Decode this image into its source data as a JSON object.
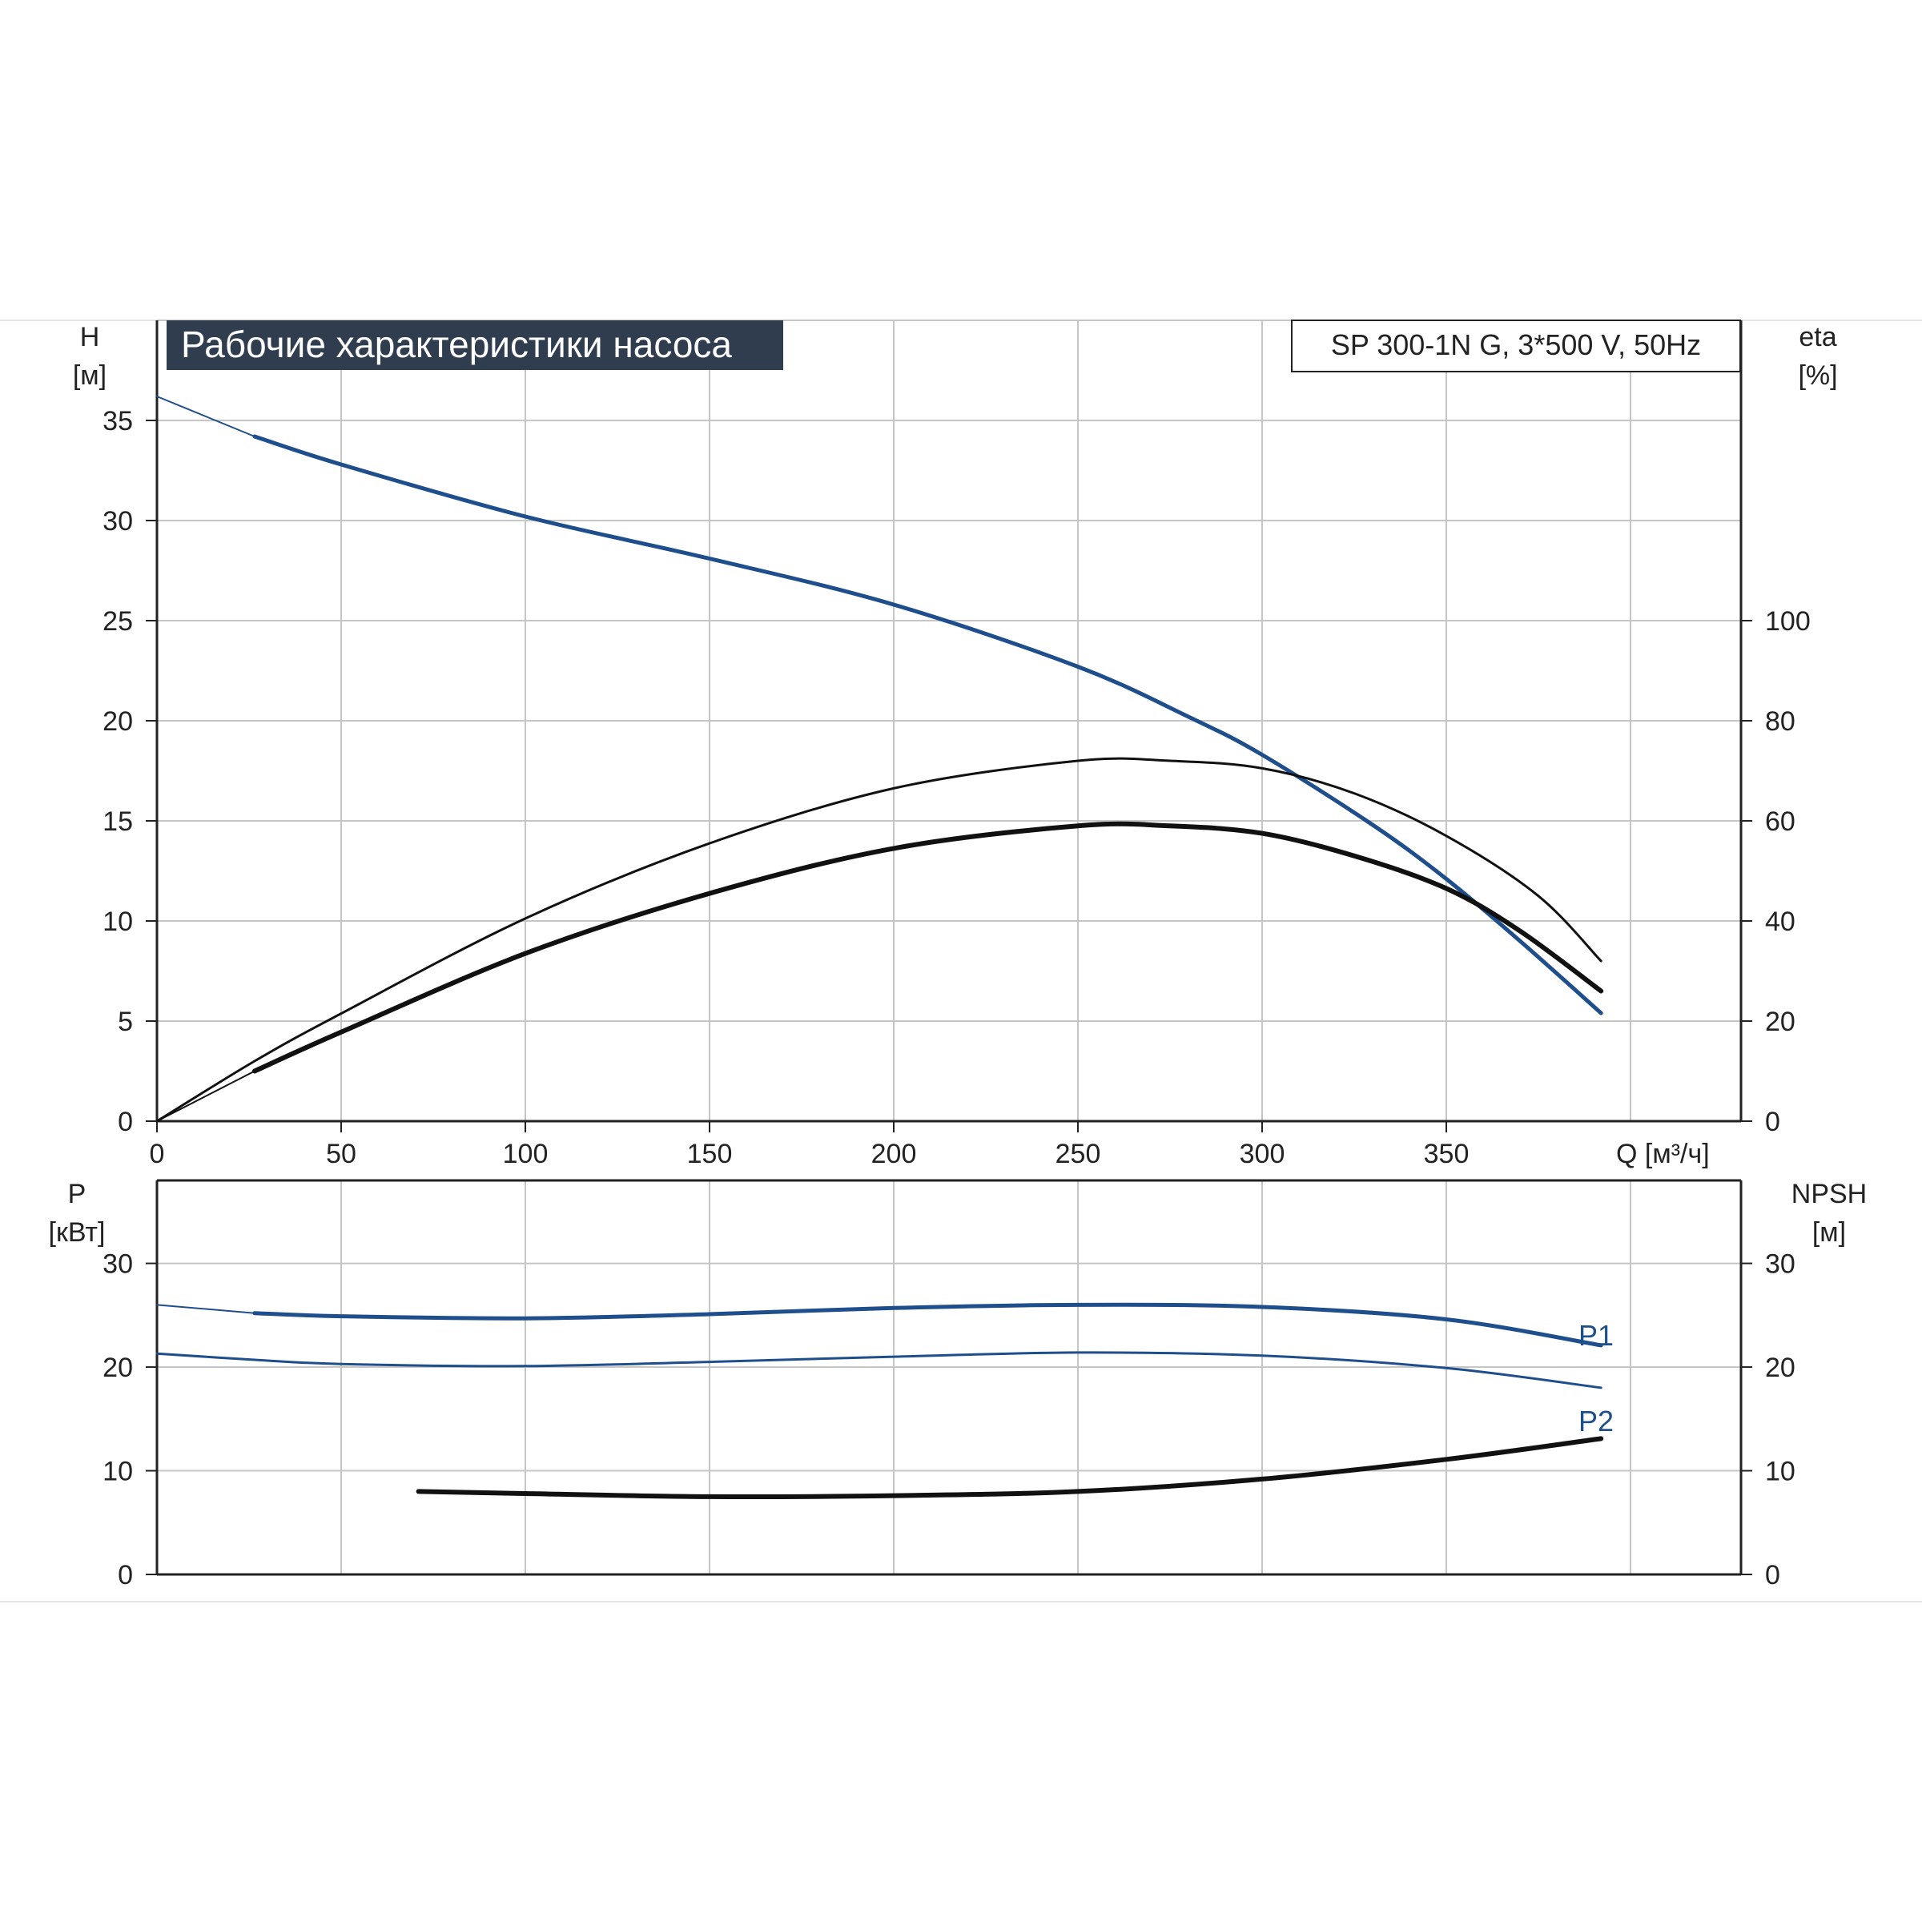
{
  "title": "Рабочие характеристики насоса",
  "model": "SP 300-1N G, 3*500 V, 50Hz",
  "colors": {
    "accent_blue": "#1f4e8c",
    "curve_black": "#111111",
    "grid": "#c6c6c6",
    "axis": "#222222",
    "title_bg": "#2f3d4f",
    "title_text": "#ffffff"
  },
  "chart_data": [
    {
      "type": "line",
      "x_ticks": [
        "0",
        "50",
        "100",
        "150",
        "200",
        "250",
        "300",
        "350"
      ],
      "xlabel": "Q [м³/ч]",
      "xlim": [
        0,
        430
      ],
      "y_left": {
        "label_line1": "H",
        "label_line2": "[м]",
        "ticks": [
          "0",
          "5",
          "10",
          "15",
          "20",
          "25",
          "30",
          "35"
        ],
        "ylim": [
          0,
          40
        ]
      },
      "y_right": {
        "label_line1": "eta",
        "label_line2": "[%]",
        "ticks": [
          "0",
          "20",
          "40",
          "60",
          "80",
          "100"
        ],
        "ylim": [
          0,
          160
        ]
      },
      "grid": true,
      "series": [
        {
          "axis": "left",
          "color": "#1f4e8c",
          "width": 5,
          "points": [
            [
              26.5,
              34.2
            ],
            [
              50,
              32.8
            ],
            [
              100,
              30.2
            ],
            [
              150,
              28.1
            ],
            [
              200,
              25.8
            ],
            [
              250,
              22.7
            ],
            [
              280,
              20.2
            ],
            [
              300,
              18.3
            ],
            [
              330,
              14.8
            ],
            [
              350,
              12.1
            ],
            [
              370,
              9.0
            ],
            [
              392,
              5.4
            ]
          ]
        },
        {
          "axis": "left",
          "color": "#1f4e8c",
          "width": 2,
          "points": [
            [
              0,
              36.2
            ],
            [
              26.5,
              34.2
            ]
          ]
        },
        {
          "axis": "right",
          "color": "#111111",
          "width": 3,
          "points": [
            [
              0,
              0
            ],
            [
              26.5,
              12
            ],
            [
              50,
              21.5
            ],
            [
              100,
              40.5
            ],
            [
              150,
              55.5
            ],
            [
              200,
              66.5
            ],
            [
              250,
              72
            ],
            [
              275,
              72
            ],
            [
              300,
              70.5
            ],
            [
              325,
              65.5
            ],
            [
              350,
              57
            ],
            [
              375,
              45
            ],
            [
              392,
              32
            ]
          ]
        },
        {
          "axis": "right",
          "color": "#111111",
          "width": 6,
          "points": [
            [
              26.5,
              10
            ],
            [
              50,
              17.8
            ],
            [
              100,
              33.5
            ],
            [
              150,
              45.5
            ],
            [
              200,
              54.5
            ],
            [
              250,
              59
            ],
            [
              275,
              59
            ],
            [
              300,
              57.5
            ],
            [
              325,
              53
            ],
            [
              350,
              46.5
            ],
            [
              370,
              38
            ],
            [
              392,
              26
            ]
          ]
        },
        {
          "axis": "right",
          "color": "#111111",
          "width": 2,
          "points": [
            [
              0,
              0
            ],
            [
              26.5,
              10
            ]
          ]
        }
      ]
    },
    {
      "type": "line",
      "xlim": [
        0,
        430
      ],
      "y_left": {
        "label_line1": "P",
        "label_line2": "[кВт]",
        "ticks": [
          "0",
          "10",
          "20",
          "30"
        ],
        "ylim": [
          0,
          38
        ]
      },
      "y_right": {
        "label_line1": "NPSH",
        "label_line2": "[м]",
        "ticks": [
          "0",
          "10",
          "20",
          "30"
        ],
        "ylim": [
          0,
          38
        ]
      },
      "grid": true,
      "series": [
        {
          "name": "P1",
          "axis": "left",
          "color": "#1f4e8c",
          "width": 5,
          "points": [
            [
              26.5,
              25.2
            ],
            [
              50,
              24.9
            ],
            [
              100,
              24.7
            ],
            [
              150,
              25.1
            ],
            [
              200,
              25.7
            ],
            [
              250,
              26.0
            ],
            [
              300,
              25.8
            ],
            [
              350,
              24.6
            ],
            [
              392,
              22.1
            ]
          ]
        },
        {
          "axis": "left",
          "color": "#1f4e8c",
          "width": 2,
          "points": [
            [
              0,
              26.0
            ],
            [
              26.5,
              25.2
            ]
          ]
        },
        {
          "name": "P2",
          "axis": "left",
          "color": "#1f4e8c",
          "width": 3,
          "points": [
            [
              0,
              21.3
            ],
            [
              26.5,
              20.7
            ],
            [
              50,
              20.3
            ],
            [
              100,
              20.1
            ],
            [
              150,
              20.5
            ],
            [
              200,
              21.0
            ],
            [
              250,
              21.4
            ],
            [
              300,
              21.1
            ],
            [
              350,
              19.9
            ],
            [
              392,
              18.0
            ]
          ]
        },
        {
          "axis": "right",
          "color": "#111111",
          "width": 6,
          "points": [
            [
              71,
              8.0
            ],
            [
              100,
              7.8
            ],
            [
              150,
              7.5
            ],
            [
              200,
              7.6
            ],
            [
              250,
              8.0
            ],
            [
              300,
              9.2
            ],
            [
              350,
              11.1
            ],
            [
              392,
              13.1
            ]
          ]
        }
      ]
    }
  ]
}
